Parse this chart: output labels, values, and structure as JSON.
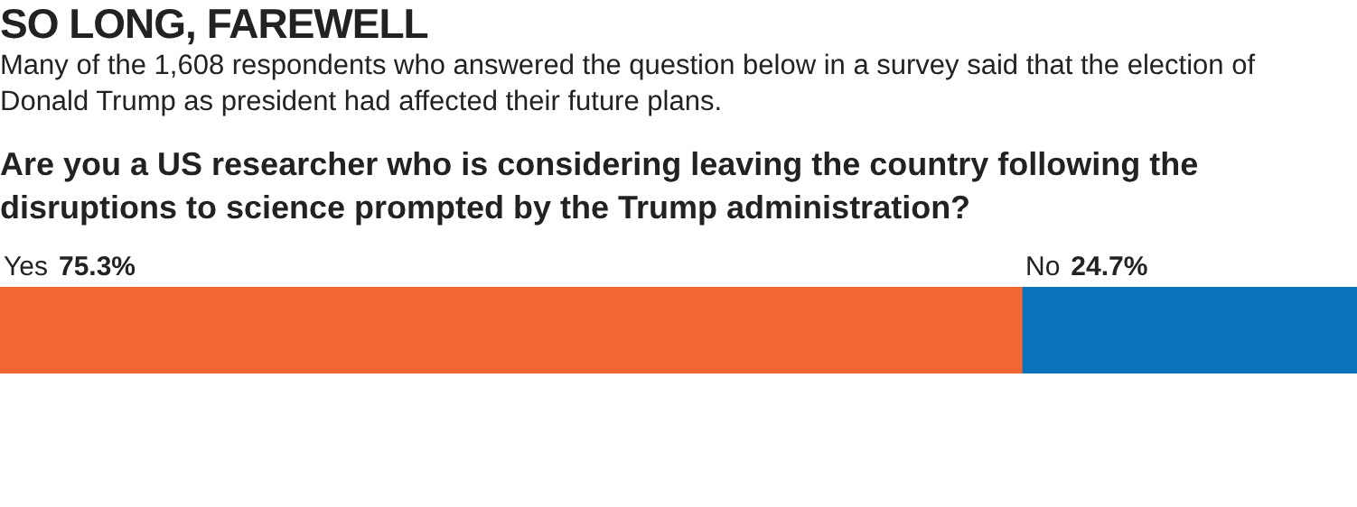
{
  "chart_data": {
    "type": "bar",
    "orientation": "horizontal",
    "stacked": true,
    "title": "SO LONG, FAREWELL",
    "subtitle": "Many of the 1,608 respondents who answered the question below in a survey said that the election of Donald Trump as president had affected their future plans.",
    "annotations": [
      "Are you a US researcher who is considering leaving the country following the disruptions to science prompted by the Trump administration?"
    ],
    "categories": [
      null
    ],
    "series": [
      {
        "name": "Yes",
        "color": "#f26634",
        "values": [
          75.3
        ],
        "value_labels": [
          "75.3%"
        ]
      },
      {
        "name": "No",
        "color": "#0a72ba",
        "values": [
          24.7
        ],
        "value_labels": [
          "24.7%"
        ]
      }
    ],
    "tick_labels": false,
    "legend": false
  }
}
